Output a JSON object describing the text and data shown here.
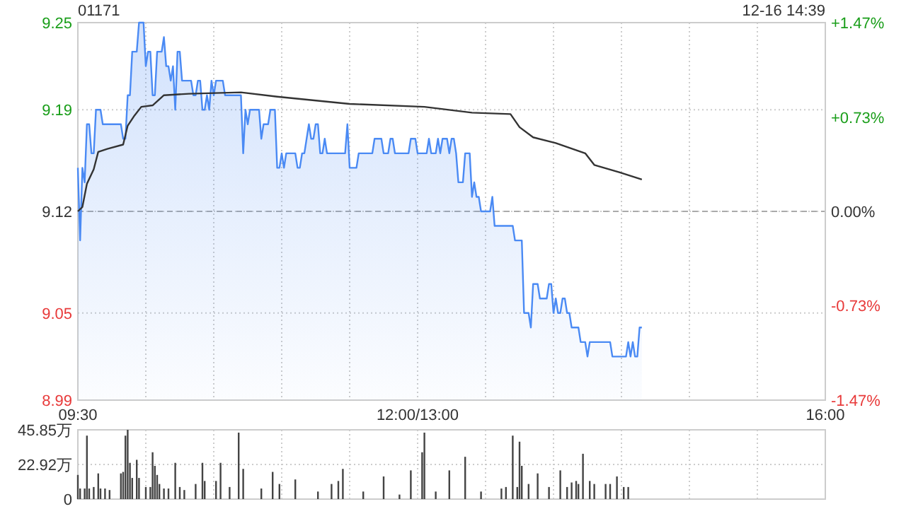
{
  "chart_data": [
    {
      "type": "area",
      "title": "01171",
      "annotations": [
        "12-16 14:39"
      ],
      "categories": [
        "09:30",
        null,
        null,
        null,
        null,
        null,
        null,
        null,
        null,
        null,
        null,
        null,
        null,
        null,
        null,
        null,
        null,
        null,
        null,
        null,
        null,
        null,
        null,
        null,
        null,
        null,
        null,
        null,
        null,
        null,
        null,
        null,
        null,
        null,
        null,
        null,
        null,
        null,
        null,
        null,
        null,
        null,
        null,
        null,
        null,
        null,
        null,
        null,
        null,
        null,
        null,
        null,
        null,
        null,
        null,
        null,
        null,
        null,
        null,
        null,
        null,
        null,
        null,
        null,
        null,
        null,
        null,
        null,
        null,
        null,
        null,
        null,
        null,
        null,
        null,
        null,
        null,
        null,
        null,
        null,
        null,
        null,
        null,
        null,
        null,
        null,
        null,
        null,
        null,
        null,
        null,
        null,
        null,
        null,
        null,
        null,
        null,
        null,
        null,
        null,
        null,
        null,
        null,
        null,
        null,
        null,
        null,
        null,
        null,
        null,
        null,
        null,
        null,
        null,
        null,
        null,
        null,
        null,
        null,
        null,
        null,
        null,
        null,
        null,
        null,
        null,
        null,
        null,
        null,
        null,
        null,
        null,
        null,
        null,
        null,
        null,
        null,
        null,
        null,
        null,
        null,
        null,
        null,
        null,
        null,
        null,
        null,
        null,
        null,
        null,
        "12:00/13:00",
        null,
        null,
        null,
        null,
        null,
        null,
        null,
        null,
        null,
        null,
        null,
        null,
        null,
        null,
        null,
        null,
        null,
        null,
        null,
        null,
        null,
        null,
        null,
        null,
        null,
        null,
        null,
        null,
        null,
        null,
        null,
        null,
        null,
        null,
        null,
        null,
        null,
        null,
        null,
        null,
        null,
        null,
        null,
        null,
        null,
        null,
        null,
        null,
        null,
        null,
        null,
        null,
        null,
        null,
        null,
        null,
        null,
        null,
        null,
        null,
        null,
        null,
        null,
        null,
        null,
        null,
        null,
        null,
        null,
        null,
        null,
        null,
        null,
        null,
        null,
        null,
        null,
        null,
        null,
        null,
        null,
        null,
        null,
        null,
        null,
        null,
        null,
        null,
        null,
        null,
        null,
        null,
        null,
        null,
        null,
        null,
        null,
        null,
        null,
        null,
        null,
        null,
        null,
        null,
        null,
        null,
        null,
        null,
        null,
        null,
        null,
        null,
        null,
        null,
        null,
        null,
        null,
        null,
        null,
        null,
        null,
        null,
        null,
        null,
        null,
        null,
        null,
        null,
        null,
        null,
        null,
        null,
        null,
        null,
        null,
        null,
        null,
        null,
        null,
        null,
        null,
        null,
        null,
        null,
        null,
        null,
        null,
        null,
        null,
        null,
        null,
        null,
        null,
        null,
        null,
        null,
        null,
        null,
        null,
        null,
        null,
        null,
        null,
        null,
        null,
        null,
        null,
        null,
        null,
        null,
        null,
        null,
        null,
        null,
        null,
        null,
        null,
        null,
        null,
        "16:00"
      ],
      "ylim": [
        8.99,
        9.25
      ],
      "yticks": [
        8.99,
        9.05,
        9.12,
        9.19,
        9.25
      ],
      "y2lim": [
        -1.47,
        1.47
      ],
      "y2ticks": [
        {
          "value": -1.47,
          "label": "-1.47%"
        },
        {
          "value": -0.73,
          "label": "-0.73%"
        },
        {
          "value": 0,
          "label": "0.00%"
        },
        {
          "value": 0.73,
          "label": "+0.73%"
        },
        {
          "value": 1.47,
          "label": "+1.47%"
        }
      ],
      "grid": true,
      "ref_lines": [
        {
          "axis": "y",
          "value": 9.12,
          "line_style": "dashed",
          "color": "#aaaaaa"
        }
      ],
      "series": [
        {
          "color": "#4a8af4",
          "values": [
            9.15,
            9.1,
            9.15,
            9.14,
            9.18,
            9.18,
            9.16,
            9.16,
            9.19,
            9.19,
            9.19,
            9.18,
            9.18,
            9.18,
            9.18,
            9.18,
            9.18,
            9.18,
            9.18,
            9.18,
            9.17,
            9.17,
            9.2,
            9.2,
            9.23,
            9.23,
            9.23,
            9.25,
            9.25,
            9.25,
            9.22,
            9.23,
            9.23,
            9.2,
            9.2,
            9.23,
            9.23,
            9.23,
            9.24,
            9.22,
            9.22,
            9.21,
            9.22,
            9.19,
            9.23,
            9.23,
            9.21,
            9.21,
            9.21,
            9.21,
            9.21,
            9.2,
            9.2,
            9.21,
            9.21,
            9.19,
            9.19,
            9.2,
            9.19,
            9.21,
            9.2,
            9.21,
            9.21,
            9.21,
            9.21,
            9.2,
            9.2,
            9.2,
            9.2,
            9.2,
            9.2,
            9.2,
            9.2,
            9.16,
            9.19,
            9.18,
            9.19,
            9.19,
            9.19,
            9.19,
            9.19,
            9.17,
            9.18,
            9.18,
            9.18,
            9.19,
            9.19,
            9.19,
            9.15,
            9.15,
            9.16,
            9.15,
            9.16,
            9.16,
            9.16,
            9.16,
            9.16,
            9.15,
            9.15,
            9.16,
            9.16,
            9.17,
            9.18,
            9.17,
            9.17,
            9.18,
            9.18,
            9.16,
            9.16,
            9.17,
            9.16,
            9.16,
            9.16,
            9.16,
            9.16,
            9.16,
            9.16,
            9.16,
            9.16,
            9.18,
            9.15,
            9.15,
            9.15,
            9.15,
            9.16,
            9.16,
            9.16,
            9.16,
            9.16,
            9.16,
            9.16,
            9.17,
            9.17,
            9.17,
            9.17,
            9.16,
            9.16,
            9.16,
            9.17,
            9.17,
            9.16,
            9.16,
            9.16,
            9.16,
            9.16,
            9.16,
            9.16,
            9.17,
            9.17,
            9.17,
            9.16,
            9.16,
            9.16,
            9.16,
            9.16,
            9.17,
            9.16,
            9.16,
            9.16,
            9.17,
            9.16,
            9.17,
            9.17,
            9.17,
            9.16,
            9.17,
            9.17,
            9.16,
            9.14,
            9.14,
            9.14,
            9.16,
            9.16,
            9.16,
            9.13,
            9.14,
            9.13,
            9.13,
            9.12,
            9.12,
            9.12,
            9.12,
            9.12,
            9.13,
            9.11,
            9.11,
            9.11,
            9.11,
            9.11,
            9.11,
            9.11,
            9.11,
            9.11,
            9.1,
            9.1,
            9.1,
            9.1,
            9.05,
            9.05,
            9.05,
            9.04,
            9.07,
            9.07,
            9.07,
            9.06,
            9.06,
            9.06,
            9.06,
            9.07,
            9.07,
            9.05,
            9.06,
            9.05,
            9.05,
            9.06,
            9.06,
            9.05,
            9.05,
            9.04,
            9.04,
            9.04,
            9.04,
            9.03,
            9.03,
            9.03,
            9.02,
            9.03,
            9.03,
            9.03,
            9.03,
            9.03,
            9.03,
            9.03,
            9.03,
            9.03,
            9.03,
            9.02,
            9.02,
            9.02,
            9.02,
            9.02,
            9.02,
            9.02,
            9.03,
            9.02,
            9.03,
            9.02,
            9.02,
            9.04,
            9.04,
            null,
            null,
            null,
            null,
            null,
            null,
            null,
            null,
            null,
            null,
            null,
            null,
            null,
            null,
            null,
            null,
            null,
            null,
            null,
            null,
            null,
            null,
            null,
            null,
            null,
            null,
            null,
            null,
            null,
            null,
            null,
            null,
            null,
            null,
            null,
            null,
            null,
            null,
            null,
            null,
            null,
            null,
            null,
            null,
            null,
            null,
            null,
            null,
            null,
            null,
            null,
            null,
            null,
            null,
            null,
            null,
            null,
            null,
            null,
            null,
            null,
            null,
            null,
            null,
            null,
            null,
            null,
            null,
            null,
            null,
            null,
            null,
            null,
            null,
            null,
            null,
            null,
            null,
            null,
            null,
            null
          ]
        },
        {
          "type": "line",
          "color": "#333333",
          "values": [
            9.12,
            null,
            9.123,
            null,
            9.139,
            null,
            null,
            9.149,
            null,
            9.161,
            null,
            null,
            null,
            9.163,
            null,
            null,
            null,
            null,
            null,
            null,
            9.166,
            null,
            9.179,
            null,
            null,
            9.186,
            null,
            null,
            9.192,
            null,
            null,
            null,
            null,
            9.193,
            null,
            null,
            null,
            null,
            9.2,
            null,
            null,
            null,
            null,
            null,
            null,
            null,
            null,
            null,
            null,
            9.201,
            null,
            null,
            null,
            null,
            null,
            null,
            null,
            null,
            null,
            null,
            null,
            null,
            null,
            null,
            null,
            null,
            null,
            null,
            null,
            null,
            null,
            null,
            9.202,
            null,
            null,
            null,
            null,
            null,
            null,
            null,
            null,
            null,
            null,
            null,
            null,
            null,
            null,
            null,
            9.199,
            null,
            null,
            null,
            null,
            null,
            null,
            null,
            null,
            null,
            null,
            null,
            null,
            null,
            null,
            null,
            null,
            null,
            null,
            null,
            null,
            null,
            null,
            null,
            null,
            null,
            null,
            null,
            null,
            null,
            null,
            null,
            9.194,
            null,
            null,
            null,
            null,
            null,
            null,
            null,
            null,
            null,
            null,
            null,
            null,
            null,
            null,
            null,
            null,
            null,
            null,
            null,
            null,
            null,
            null,
            null,
            null,
            null,
            null,
            null,
            null,
            null,
            null,
            null,
            null,
            9.192,
            null,
            null,
            null,
            null,
            null,
            null,
            null,
            null,
            null,
            null,
            null,
            null,
            null,
            null,
            null,
            null,
            null,
            null,
            null,
            null,
            9.188,
            null,
            null,
            null,
            null,
            null,
            null,
            null,
            null,
            null,
            null,
            null,
            null,
            null,
            null,
            null,
            null,
            9.187,
            null,
            null,
            null,
            9.178,
            null,
            null,
            null,
            null,
            null,
            9.171,
            null,
            null,
            null,
            null,
            null,
            null,
            null,
            null,
            null,
            9.167,
            null,
            null,
            null,
            null,
            null,
            null,
            null,
            null,
            null,
            null,
            null,
            null,
            9.16,
            null,
            null,
            null,
            9.152,
            null,
            null,
            null,
            null,
            null,
            null,
            null,
            null,
            null,
            null,
            9.147,
            null,
            null,
            null,
            null,
            null,
            null,
            null,
            null,
            null,
            9.142,
            null,
            null,
            null,
            null,
            null,
            null,
            null,
            null,
            null,
            null,
            null,
            null,
            null,
            null,
            null,
            null,
            null,
            null,
            null,
            null,
            null,
            null,
            null,
            null,
            null,
            null,
            null,
            null,
            null,
            null,
            null,
            null,
            null,
            null,
            null,
            null,
            null,
            null,
            null,
            null,
            null,
            null,
            null,
            null,
            null,
            null,
            null,
            null,
            null,
            null,
            null,
            null,
            null,
            null,
            null,
            null,
            null,
            null,
            null,
            null,
            null,
            null,
            null,
            null,
            null,
            null,
            null,
            null,
            null,
            null,
            null,
            null,
            null,
            null,
            null,
            null,
            null,
            null,
            null,
            null,
            null
          ]
        }
      ]
    },
    {
      "type": "bar",
      "categories": [
        null,
        null,
        null,
        null,
        null,
        null,
        null,
        null,
        null,
        null,
        null,
        null,
        null,
        null,
        null,
        null,
        null,
        null,
        null,
        null,
        null,
        null,
        null,
        null,
        null,
        null,
        null,
        null,
        null,
        null,
        null,
        null,
        null,
        null,
        null,
        null,
        null,
        null,
        null,
        null,
        null,
        null,
        null,
        null,
        null,
        null,
        null,
        null,
        null,
        null,
        null,
        null,
        null,
        null,
        null,
        null,
        null,
        null,
        null,
        null,
        null,
        null,
        null,
        null,
        null,
        null,
        null,
        null,
        null,
        null,
        null,
        null,
        null,
        null,
        null,
        null,
        null,
        null,
        null,
        null,
        null,
        null,
        null,
        null,
        null,
        null,
        null,
        null,
        null,
        null,
        null,
        null,
        null,
        null,
        null,
        null,
        null,
        null,
        null,
        null,
        null,
        null,
        null,
        null,
        null,
        null,
        null,
        null,
        null,
        null,
        null,
        null,
        null,
        null,
        null,
        null,
        null,
        null,
        null,
        null,
        null,
        null,
        null,
        null,
        null,
        null,
        null,
        null,
        null,
        null,
        null,
        null,
        null,
        null,
        null,
        null,
        null,
        null,
        null,
        null,
        null,
        null,
        null,
        null,
        null,
        null,
        null,
        null,
        null,
        null,
        null,
        null,
        null,
        null,
        null,
        null,
        null,
        null,
        null,
        null,
        null,
        null,
        null,
        null,
        null,
        null,
        null,
        null,
        null,
        null,
        null,
        null,
        null,
        null,
        null,
        null,
        null,
        null,
        null,
        null,
        null,
        null,
        null,
        null,
        null,
        null,
        null,
        null,
        null,
        null,
        null,
        null,
        null,
        null,
        null,
        null,
        null,
        null,
        null,
        null,
        null,
        null,
        null,
        null,
        null,
        null,
        null,
        null,
        null,
        null,
        null,
        null,
        null,
        null,
        null,
        null,
        null,
        null,
        null,
        null,
        null,
        null,
        null,
        null,
        null,
        null,
        null,
        null,
        null,
        null,
        null,
        null,
        null,
        null,
        null,
        null,
        null,
        null,
        null,
        null,
        null,
        null,
        null,
        null,
        null,
        null,
        null,
        null,
        null,
        null,
        null,
        null,
        null,
        null,
        null,
        null,
        null,
        null,
        null,
        null,
        null,
        null,
        null,
        null,
        null,
        null,
        null,
        null,
        null,
        null,
        null,
        null,
        null,
        null,
        null,
        null,
        null,
        null,
        null,
        null,
        null,
        null,
        null,
        null,
        null,
        null,
        null,
        null,
        null,
        null,
        null,
        null,
        null,
        null,
        null,
        null,
        null,
        null,
        null,
        null,
        null,
        null,
        null,
        null,
        null,
        null,
        null,
        null,
        null,
        null,
        null,
        null,
        null,
        null,
        null,
        null,
        null,
        null,
        null,
        null,
        null,
        null,
        null,
        null,
        null,
        null,
        null,
        null,
        null,
        null,
        null
      ],
      "ylim": [
        0,
        45.85
      ],
      "yticks": [
        0,
        {
          "value": 22.92,
          "label": "22.92万"
        },
        {
          "value": 45.85,
          "label": "45.85万"
        }
      ],
      "tick_labels": "y",
      "grid": true,
      "color": "#444444",
      "values": [
        16,
        7,
        null,
        7,
        42,
        7,
        null,
        8,
        null,
        17,
        7,
        null,
        7,
        null,
        6,
        null,
        null,
        null,
        null,
        17,
        18,
        42,
        45.85,
        24,
        14,
        null,
        26,
        14,
        null,
        null,
        8,
        null,
        8,
        31,
        22,
        16,
        10,
        null,
        7,
        null,
        7,
        null,
        null,
        24,
        null,
        8,
        null,
        6,
        null,
        null,
        null,
        null,
        10,
        null,
        null,
        24,
        12,
        null,
        null,
        null,
        null,
        12,
        null,
        24,
        null,
        null,
        null,
        8,
        null,
        null,
        null,
        44,
        null,
        20,
        null,
        null,
        null,
        null,
        null,
        null,
        null,
        7,
        null,
        null,
        null,
        null,
        18,
        null,
        null,
        10,
        null,
        null,
        null,
        null,
        null,
        null,
        13,
        null,
        null,
        null,
        null,
        null,
        null,
        null,
        null,
        null,
        5,
        null,
        null,
        null,
        null,
        null,
        10,
        null,
        null,
        12,
        null,
        20,
        null,
        null,
        null,
        null,
        null,
        null,
        null,
        null,
        5,
        null,
        null,
        null,
        null,
        null,
        null,
        null,
        null,
        15,
        null,
        null,
        null,
        null,
        null,
        null,
        3,
        null,
        null,
        null,
        null,
        19,
        null,
        null,
        null,
        null,
        31,
        44,
        null,
        null,
        null,
        null,
        5,
        null,
        null,
        null,
        null,
        null,
        19,
        null,
        null,
        null,
        null,
        null,
        null,
        28,
        null,
        null,
        null,
        null,
        null,
        null,
        5,
        null,
        null,
        null,
        null,
        null,
        null,
        null,
        null,
        7,
        null,
        8,
        null,
        null,
        42,
        null,
        8,
        38,
        22,
        null,
        null,
        10,
        null,
        null,
        null,
        17,
        null,
        null,
        null,
        null,
        8,
        null,
        null,
        null,
        null,
        19,
        null,
        null,
        8,
        null,
        11,
        null,
        12,
        10,
        null,
        30,
        null,
        null,
        12,
        null,
        10,
        null,
        null,
        null,
        null,
        10,
        null,
        10,
        null,
        null,
        15,
        null,
        null,
        8,
        null,
        8,
        null,
        null,
        null,
        null,
        null,
        null,
        null,
        null,
        null,
        null,
        null,
        null,
        null,
        null,
        null,
        null,
        null,
        null,
        null,
        null,
        null,
        null,
        null,
        null,
        null,
        null,
        null,
        null,
        null,
        null,
        null,
        null,
        null,
        null,
        null,
        null,
        null,
        null,
        null,
        null,
        null,
        null,
        null,
        null,
        null,
        null,
        null,
        null,
        null,
        null,
        null,
        null,
        null,
        null,
        null,
        null,
        null,
        null,
        null,
        null,
        null,
        null,
        null,
        null,
        null,
        null,
        null,
        null,
        null,
        null,
        null,
        null,
        null,
        null,
        null,
        null,
        null,
        null,
        null,
        null,
        null,
        null,
        null,
        null,
        null,
        null,
        null
      ]
    }
  ]
}
